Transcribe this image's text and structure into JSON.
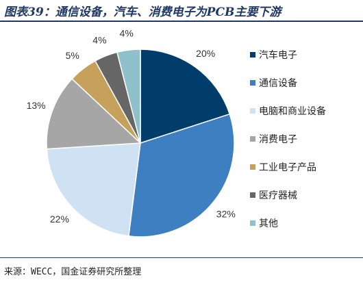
{
  "header": {
    "title": "图表39：通信设备，汽车、消费电子为PCB主要下游"
  },
  "footer": {
    "source": "来源：WECC，国金证券研究所整理"
  },
  "chart_data": {
    "type": "pie",
    "start_angle_deg": 0,
    "direction": "clockwise",
    "legend_position": "right",
    "slices": [
      {
        "name": "汽车电子",
        "value": 20,
        "label": "20%",
        "color": "#003d6b"
      },
      {
        "name": "通信设备",
        "value": 32,
        "label": "32%",
        "color": "#3d7fc1"
      },
      {
        "name": "电脑和商业设备",
        "value": 22,
        "label": "22%",
        "color": "#cfe2f3"
      },
      {
        "name": "消费电子",
        "value": 13,
        "label": "13%",
        "color": "#a6a6a6"
      },
      {
        "name": "工业电子产品",
        "value": 5,
        "label": "5%",
        "color": "#c6a15b"
      },
      {
        "name": "医疗器械",
        "value": 4,
        "label": "4%",
        "color": "#666666"
      },
      {
        "name": "其他",
        "value": 4,
        "label": "4%",
        "color": "#8fc1cc"
      }
    ]
  }
}
